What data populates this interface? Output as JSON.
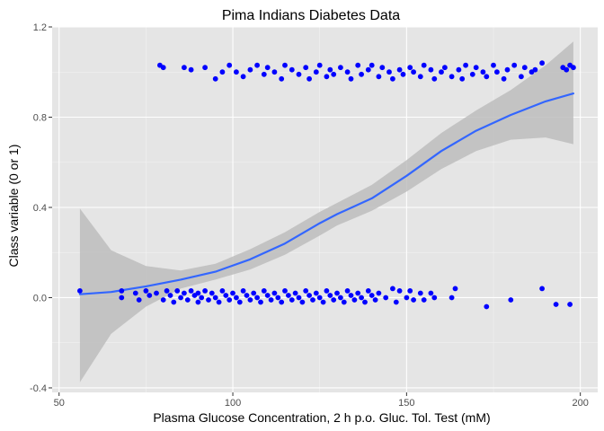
{
  "chart_data": {
    "type": "scatter",
    "title": "Pima Indians Diabetes Data",
    "xlabel": "Plasma Glucose Concentration, 2 h p.o. Gluc. Tol. Test (mM)",
    "ylabel": "Class variable (0 or 1)",
    "xlim": [
      48,
      205
    ],
    "ylim": [
      -0.42,
      1.2
    ],
    "x_ticks": [
      50,
      100,
      150,
      200
    ],
    "x_tick_labels": [
      "50",
      "100",
      "150",
      "200"
    ],
    "y_ticks": [
      -0.4,
      0.0,
      0.4,
      0.8,
      1.2
    ],
    "y_tick_labels": [
      "-0.4",
      "0.0",
      "0.4",
      "0.8",
      "1.2"
    ],
    "grid": true,
    "background": "#e5e5e5",
    "point_color": "#0000ff",
    "smooth_color": "#3366ff",
    "band_color": "#bdbdbd",
    "points": [
      [
        56,
        0.03
      ],
      [
        68,
        0.03
      ],
      [
        68,
        0.0
      ],
      [
        72,
        0.02
      ],
      [
        73,
        -0.01
      ],
      [
        75,
        0.03
      ],
      [
        76,
        0.01
      ],
      [
        78,
        0.02
      ],
      [
        80,
        -0.01
      ],
      [
        81,
        0.03
      ],
      [
        82,
        0.01
      ],
      [
        83,
        -0.02
      ],
      [
        84,
        0.03
      ],
      [
        85,
        0.0
      ],
      [
        86,
        0.02
      ],
      [
        87,
        -0.01
      ],
      [
        88,
        0.03
      ],
      [
        89,
        0.01
      ],
      [
        90,
        -0.02
      ],
      [
        90,
        0.02
      ],
      [
        91,
        0.0
      ],
      [
        92,
        0.03
      ],
      [
        93,
        -0.01
      ],
      [
        94,
        0.02
      ],
      [
        95,
        0.0
      ],
      [
        96,
        -0.02
      ],
      [
        97,
        0.03
      ],
      [
        98,
        0.01
      ],
      [
        99,
        -0.01
      ],
      [
        100,
        0.02
      ],
      [
        101,
        0.0
      ],
      [
        102,
        -0.02
      ],
      [
        103,
        0.03
      ],
      [
        104,
        0.01
      ],
      [
        105,
        -0.01
      ],
      [
        106,
        0.02
      ],
      [
        107,
        0.0
      ],
      [
        108,
        -0.02
      ],
      [
        109,
        0.03
      ],
      [
        110,
        0.01
      ],
      [
        111,
        -0.01
      ],
      [
        112,
        0.02
      ],
      [
        113,
        0.0
      ],
      [
        114,
        -0.02
      ],
      [
        115,
        0.03
      ],
      [
        116,
        0.01
      ],
      [
        117,
        -0.01
      ],
      [
        118,
        0.02
      ],
      [
        119,
        0.0
      ],
      [
        120,
        -0.02
      ],
      [
        121,
        0.03
      ],
      [
        122,
        0.01
      ],
      [
        123,
        -0.01
      ],
      [
        124,
        0.02
      ],
      [
        125,
        0.0
      ],
      [
        126,
        -0.02
      ],
      [
        127,
        0.03
      ],
      [
        128,
        0.01
      ],
      [
        129,
        -0.01
      ],
      [
        130,
        0.02
      ],
      [
        131,
        0.0
      ],
      [
        132,
        -0.02
      ],
      [
        133,
        0.03
      ],
      [
        134,
        0.01
      ],
      [
        135,
        -0.01
      ],
      [
        136,
        0.02
      ],
      [
        137,
        0.0
      ],
      [
        138,
        -0.02
      ],
      [
        139,
        0.03
      ],
      [
        140,
        0.01
      ],
      [
        141,
        -0.01
      ],
      [
        142,
        0.02
      ],
      [
        144,
        0.0
      ],
      [
        146,
        0.04
      ],
      [
        147,
        -0.02
      ],
      [
        148,
        0.03
      ],
      [
        150,
        0.0
      ],
      [
        151,
        0.03
      ],
      [
        152,
        -0.01
      ],
      [
        154,
        0.02
      ],
      [
        155,
        -0.01
      ],
      [
        157,
        0.02
      ],
      [
        158,
        0.0
      ],
      [
        163,
        0.0
      ],
      [
        164,
        0.04
      ],
      [
        173,
        -0.04
      ],
      [
        180,
        -0.01
      ],
      [
        189,
        0.04
      ],
      [
        193,
        -0.03
      ],
      [
        197,
        -0.03
      ],
      [
        79,
        1.03
      ],
      [
        80,
        1.02
      ],
      [
        86,
        1.02
      ],
      [
        88,
        1.01
      ],
      [
        92,
        1.02
      ],
      [
        95,
        0.97
      ],
      [
        97,
        1.0
      ],
      [
        99,
        1.03
      ],
      [
        101,
        1.0
      ],
      [
        103,
        0.98
      ],
      [
        105,
        1.01
      ],
      [
        107,
        1.03
      ],
      [
        109,
        0.99
      ],
      [
        110,
        1.02
      ],
      [
        112,
        1.0
      ],
      [
        114,
        0.97
      ],
      [
        115,
        1.03
      ],
      [
        117,
        1.01
      ],
      [
        119,
        0.99
      ],
      [
        121,
        1.02
      ],
      [
        122,
        0.97
      ],
      [
        124,
        1.0
      ],
      [
        125,
        1.03
      ],
      [
        127,
        0.98
      ],
      [
        128,
        1.01
      ],
      [
        129,
        0.99
      ],
      [
        131,
        1.02
      ],
      [
        133,
        1.0
      ],
      [
        134,
        0.97
      ],
      [
        136,
        1.03
      ],
      [
        137,
        0.99
      ],
      [
        139,
        1.01
      ],
      [
        140,
        1.03
      ],
      [
        142,
        0.98
      ],
      [
        143,
        1.02
      ],
      [
        145,
        1.0
      ],
      [
        146,
        0.97
      ],
      [
        148,
        1.01
      ],
      [
        149,
        0.99
      ],
      [
        151,
        1.02
      ],
      [
        152,
        1.0
      ],
      [
        154,
        0.98
      ],
      [
        155,
        1.03
      ],
      [
        157,
        1.01
      ],
      [
        158,
        0.97
      ],
      [
        160,
        1.0
      ],
      [
        161,
        1.02
      ],
      [
        163,
        0.98
      ],
      [
        165,
        1.01
      ],
      [
        166,
        0.97
      ],
      [
        167,
        1.03
      ],
      [
        169,
        0.99
      ],
      [
        170,
        1.02
      ],
      [
        172,
        1.0
      ],
      [
        173,
        0.98
      ],
      [
        175,
        1.03
      ],
      [
        176,
        1.0
      ],
      [
        178,
        0.97
      ],
      [
        179,
        1.01
      ],
      [
        181,
        1.03
      ],
      [
        183,
        0.98
      ],
      [
        184,
        1.02
      ],
      [
        186,
        1.0
      ],
      [
        187,
        1.01
      ],
      [
        189,
        1.04
      ],
      [
        195,
        1.02
      ],
      [
        196,
        1.01
      ],
      [
        197,
        1.03
      ],
      [
        198,
        1.02
      ]
    ],
    "smooth_line": [
      [
        56,
        0.015
      ],
      [
        65,
        0.025
      ],
      [
        75,
        0.05
      ],
      [
        85,
        0.08
      ],
      [
        95,
        0.115
      ],
      [
        105,
        0.17
      ],
      [
        115,
        0.24
      ],
      [
        125,
        0.33
      ],
      [
        130,
        0.37
      ],
      [
        140,
        0.44
      ],
      [
        150,
        0.54
      ],
      [
        160,
        0.65
      ],
      [
        170,
        0.74
      ],
      [
        180,
        0.81
      ],
      [
        190,
        0.87
      ],
      [
        198,
        0.905
      ]
    ],
    "confidence_band_upper": [
      [
        56,
        0.395
      ],
      [
        65,
        0.21
      ],
      [
        75,
        0.14
      ],
      [
        85,
        0.12
      ],
      [
        95,
        0.15
      ],
      [
        105,
        0.215
      ],
      [
        115,
        0.29
      ],
      [
        125,
        0.38
      ],
      [
        130,
        0.42
      ],
      [
        140,
        0.5
      ],
      [
        150,
        0.61
      ],
      [
        160,
        0.73
      ],
      [
        170,
        0.83
      ],
      [
        180,
        0.92
      ],
      [
        190,
        1.03
      ],
      [
        198,
        1.135
      ]
    ],
    "confidence_band_lower": [
      [
        56,
        -0.375
      ],
      [
        65,
        -0.16
      ],
      [
        75,
        -0.04
      ],
      [
        85,
        0.04
      ],
      [
        95,
        0.08
      ],
      [
        105,
        0.125
      ],
      [
        115,
        0.19
      ],
      [
        125,
        0.275
      ],
      [
        130,
        0.32
      ],
      [
        140,
        0.385
      ],
      [
        150,
        0.47
      ],
      [
        160,
        0.57
      ],
      [
        170,
        0.65
      ],
      [
        180,
        0.7
      ],
      [
        190,
        0.71
      ],
      [
        198,
        0.68
      ]
    ]
  }
}
